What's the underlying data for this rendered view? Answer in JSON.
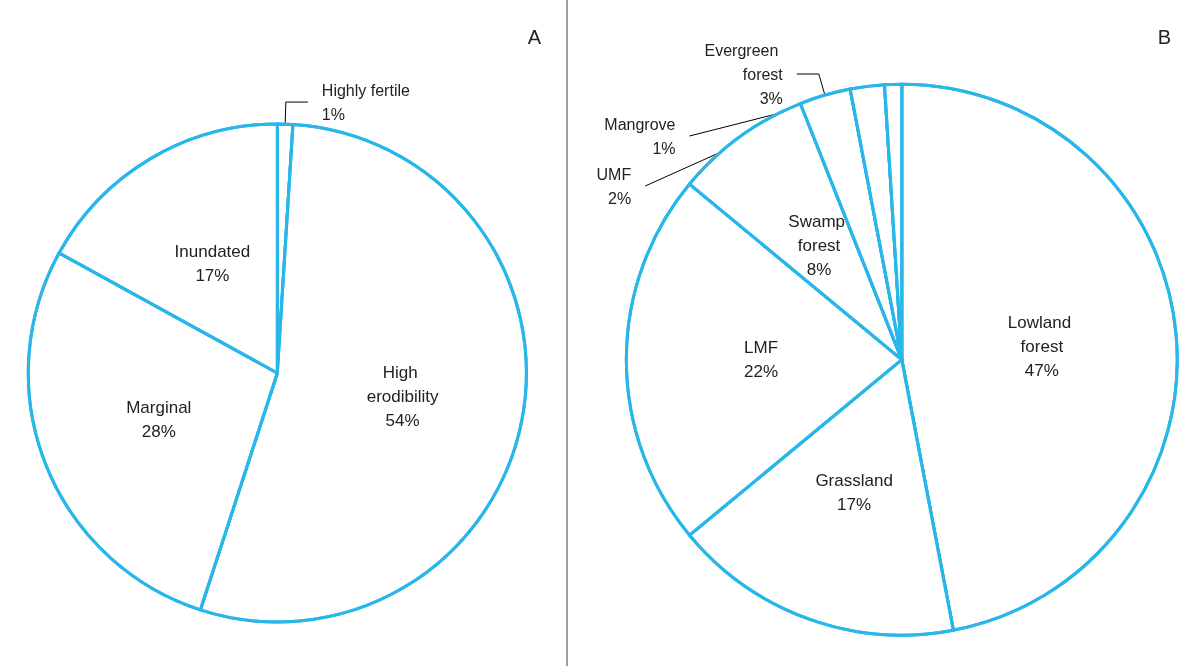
{
  "chart_data": [
    {
      "type": "pie",
      "title": "A",
      "categories": [
        "Highly fertile",
        "High erodibility",
        "Marginal",
        "Inundated"
      ],
      "values": [
        1,
        54,
        28,
        17
      ],
      "value_labels": [
        "1%",
        "54%",
        "28%",
        "17%"
      ],
      "colors": [
        "#ffffff",
        "#ffffff",
        "#ffffff",
        "#ffffff"
      ],
      "legend": false
    },
    {
      "type": "pie",
      "title": "B",
      "categories": [
        "Lowland forest",
        "Grassland",
        "LMF",
        "Swamp forest",
        "Evergreen forest",
        "UMF",
        "Mangrove"
      ],
      "values": [
        47,
        17,
        22,
        8,
        3,
        2,
        1
      ],
      "value_labels": [
        "47%",
        "17%",
        "22%",
        "8%",
        "3%",
        "2%",
        "1%"
      ],
      "colors": [
        "#ffffff",
        "#ffffff",
        "#ffffff",
        "#ffffff",
        "#ffffff",
        "#ffffff",
        "#ffffff"
      ],
      "legend": false
    }
  ]
}
